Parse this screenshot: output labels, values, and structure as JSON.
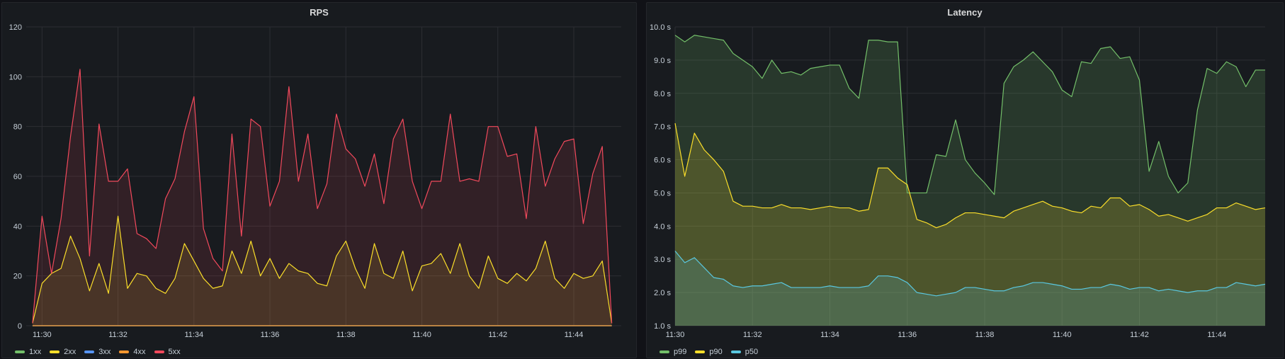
{
  "chart_data": [
    {
      "type": "area",
      "title": "RPS",
      "xlabel": "",
      "ylabel": "",
      "x_ticks": [
        "11:30",
        "11:32",
        "11:34",
        "11:36",
        "11:38",
        "11:40",
        "11:42",
        "11:44"
      ],
      "y_ticks": [
        "0",
        "20",
        "40",
        "60",
        "80",
        "100",
        "120"
      ],
      "xlim": [
        "11:29:35",
        "11:45:15"
      ],
      "ylim": [
        0,
        120
      ],
      "grid": true,
      "legend_placement": "bottom-left",
      "x": [
        "11:29:45",
        "11:30:00",
        "11:30:15",
        "11:30:30",
        "11:30:45",
        "11:31:00",
        "11:31:15",
        "11:31:30",
        "11:31:45",
        "11:32:00",
        "11:32:15",
        "11:32:30",
        "11:32:45",
        "11:33:00",
        "11:33:15",
        "11:33:30",
        "11:33:45",
        "11:34:00",
        "11:34:15",
        "11:34:30",
        "11:34:45",
        "11:35:00",
        "11:35:15",
        "11:35:30",
        "11:35:45",
        "11:36:00",
        "11:36:15",
        "11:36:30",
        "11:36:45",
        "11:37:00",
        "11:37:15",
        "11:37:30",
        "11:37:45",
        "11:38:00",
        "11:38:15",
        "11:38:30",
        "11:38:45",
        "11:39:00",
        "11:39:15",
        "11:39:30",
        "11:39:45",
        "11:40:00",
        "11:40:15",
        "11:40:30",
        "11:40:45",
        "11:41:00",
        "11:41:15",
        "11:41:30",
        "11:41:45",
        "11:42:00",
        "11:42:15",
        "11:42:30",
        "11:42:45",
        "11:43:00",
        "11:43:15",
        "11:43:30",
        "11:43:45",
        "11:44:00",
        "11:44:15",
        "11:44:30",
        "11:44:45",
        "11:45:00"
      ],
      "series": [
        {
          "name": "1xx",
          "color": "#73bf69",
          "values": [
            0,
            0,
            0,
            0,
            0,
            0,
            0,
            0,
            0,
            0,
            0,
            0,
            0,
            0,
            0,
            0,
            0,
            0,
            0,
            0,
            0,
            0,
            0,
            0,
            0,
            0,
            0,
            0,
            0,
            0,
            0,
            0,
            0,
            0,
            0,
            0,
            0,
            0,
            0,
            0,
            0,
            0,
            0,
            0,
            0,
            0,
            0,
            0,
            0,
            0,
            0,
            0,
            0,
            0,
            0,
            0,
            0,
            0,
            0,
            0,
            0,
            0
          ]
        },
        {
          "name": "2xx",
          "color": "#fade2a",
          "values": [
            1,
            17,
            21,
            23,
            36,
            27,
            14,
            25,
            13,
            44,
            15,
            21,
            20,
            15,
            13,
            19,
            33,
            26,
            19,
            15,
            16,
            30,
            21,
            34,
            20,
            27,
            19,
            25,
            22,
            21,
            17,
            16,
            28,
            34,
            23,
            15,
            33,
            21,
            19,
            30,
            14,
            24,
            25,
            29,
            21,
            33,
            20,
            15,
            28,
            19,
            17,
            21,
            18,
            23,
            34,
            19,
            15,
            21,
            19,
            20,
            26,
            1
          ]
        },
        {
          "name": "3xx",
          "color": "#5794f2",
          "values": [
            0,
            0,
            0,
            0,
            0,
            0,
            0,
            0,
            0,
            0,
            0,
            0,
            0,
            0,
            0,
            0,
            0,
            0,
            0,
            0,
            0,
            0,
            0,
            0,
            0,
            0,
            0,
            0,
            0,
            0,
            0,
            0,
            0,
            0,
            0,
            0,
            0,
            0,
            0,
            0,
            0,
            0,
            0,
            0,
            0,
            0,
            0,
            0,
            0,
            0,
            0,
            0,
            0,
            0,
            0,
            0,
            0,
            0,
            0,
            0,
            0,
            0
          ]
        },
        {
          "name": "4xx",
          "color": "#ff9830",
          "values": [
            0,
            0,
            0,
            0,
            0,
            0,
            0,
            0,
            0,
            0,
            0,
            0,
            0,
            0,
            0,
            0,
            0,
            0,
            0,
            0,
            0,
            0,
            0,
            0,
            0,
            0,
            0,
            0,
            0,
            0,
            0,
            0,
            0,
            0,
            0,
            0,
            0,
            0,
            0,
            0,
            0,
            0,
            0,
            0,
            0,
            0,
            0,
            0,
            0,
            0,
            0,
            0,
            0,
            0,
            0,
            0,
            0,
            0,
            0,
            0,
            0,
            0
          ]
        },
        {
          "name": "5xx",
          "color": "#f2495c",
          "values": [
            1,
            44,
            21,
            43,
            76,
            103,
            28,
            81,
            58,
            58,
            63,
            37,
            35,
            31,
            51,
            59,
            78,
            92,
            39,
            27,
            22,
            77,
            36,
            83,
            80,
            48,
            58,
            96,
            58,
            77,
            47,
            57,
            85,
            71,
            67,
            56,
            69,
            49,
            75,
            83,
            58,
            47,
            58,
            58,
            85,
            58,
            59,
            58,
            80,
            80,
            68,
            69,
            43,
            80,
            56,
            67,
            74,
            75,
            41,
            61,
            72,
            1
          ]
        }
      ]
    },
    {
      "type": "area",
      "title": "Latency",
      "xlabel": "",
      "ylabel": "",
      "x_ticks": [
        "11:30",
        "11:32",
        "11:34",
        "11:36",
        "11:38",
        "11:40",
        "11:42",
        "11:44"
      ],
      "y_ticks": [
        "1.0 s",
        "2.0 s",
        "3.0 s",
        "4.0 s",
        "5.0 s",
        "6.0 s",
        "7.0 s",
        "8.0 s",
        "9.0 s",
        "10.0 s"
      ],
      "xlim": [
        "11:30:00",
        "11:45:15"
      ],
      "ylim": [
        1,
        10
      ],
      "grid": true,
      "legend_placement": "bottom-left",
      "x": [
        "11:30:00",
        "11:30:15",
        "11:30:30",
        "11:30:45",
        "11:31:00",
        "11:31:15",
        "11:31:30",
        "11:31:45",
        "11:32:00",
        "11:32:15",
        "11:32:30",
        "11:32:45",
        "11:33:00",
        "11:33:15",
        "11:33:30",
        "11:33:45",
        "11:34:00",
        "11:34:15",
        "11:34:30",
        "11:34:45",
        "11:35:00",
        "11:35:15",
        "11:35:30",
        "11:35:45",
        "11:36:00",
        "11:36:15",
        "11:36:30",
        "11:36:45",
        "11:37:00",
        "11:37:15",
        "11:37:30",
        "11:37:45",
        "11:38:00",
        "11:38:15",
        "11:38:30",
        "11:38:45",
        "11:39:00",
        "11:39:15",
        "11:39:30",
        "11:39:45",
        "11:40:00",
        "11:40:15",
        "11:40:30",
        "11:40:45",
        "11:41:00",
        "11:41:15",
        "11:41:30",
        "11:41:45",
        "11:42:00",
        "11:42:15",
        "11:42:30",
        "11:42:45",
        "11:43:00",
        "11:43:15",
        "11:43:30",
        "11:43:45",
        "11:44:00",
        "11:44:15",
        "11:44:30",
        "11:44:45",
        "11:45:00",
        "11:45:15"
      ],
      "series": [
        {
          "name": "p99",
          "color": "#73bf69",
          "values": [
            9.75,
            9.55,
            9.75,
            9.7,
            9.65,
            9.6,
            9.2,
            9.0,
            8.8,
            8.45,
            9.0,
            8.6,
            8.65,
            8.55,
            8.75,
            8.8,
            8.85,
            8.85,
            8.15,
            7.85,
            9.6,
            9.6,
            9.55,
            9.55,
            5.0,
            5.0,
            5.0,
            6.15,
            6.1,
            7.2,
            6.0,
            5.6,
            5.3,
            4.95,
            8.3,
            8.8,
            9.0,
            9.25,
            8.95,
            8.65,
            8.1,
            7.9,
            8.95,
            8.9,
            9.35,
            9.4,
            9.05,
            9.1,
            8.4,
            5.65,
            6.55,
            5.5,
            5.0,
            5.3,
            7.5,
            8.75,
            8.6,
            8.95,
            8.8,
            8.2,
            8.7,
            8.7
          ]
        },
        {
          "name": "p90",
          "color": "#fade2a",
          "values": [
            7.1,
            5.5,
            6.8,
            6.3,
            6.0,
            5.65,
            4.75,
            4.6,
            4.6,
            4.55,
            4.55,
            4.65,
            4.55,
            4.55,
            4.5,
            4.55,
            4.6,
            4.55,
            4.55,
            4.45,
            4.5,
            5.75,
            5.75,
            5.45,
            5.25,
            4.2,
            4.1,
            3.95,
            4.05,
            4.25,
            4.4,
            4.4,
            4.35,
            4.3,
            4.25,
            4.45,
            4.55,
            4.65,
            4.75,
            4.6,
            4.55,
            4.45,
            4.4,
            4.6,
            4.55,
            4.85,
            4.85,
            4.6,
            4.65,
            4.5,
            4.3,
            4.35,
            4.25,
            4.15,
            4.25,
            4.35,
            4.55,
            4.55,
            4.7,
            4.6,
            4.5,
            4.55
          ]
        },
        {
          "name": "p50",
          "color": "#5ac8e0",
          "values": [
            3.25,
            2.9,
            3.05,
            2.75,
            2.45,
            2.4,
            2.2,
            2.15,
            2.2,
            2.2,
            2.25,
            2.3,
            2.15,
            2.15,
            2.15,
            2.15,
            2.2,
            2.15,
            2.15,
            2.15,
            2.2,
            2.5,
            2.5,
            2.45,
            2.3,
            2.0,
            1.95,
            1.9,
            1.95,
            2.0,
            2.15,
            2.15,
            2.1,
            2.05,
            2.05,
            2.15,
            2.2,
            2.3,
            2.3,
            2.25,
            2.2,
            2.1,
            2.1,
            2.15,
            2.15,
            2.25,
            2.2,
            2.1,
            2.15,
            2.15,
            2.05,
            2.1,
            2.05,
            2.0,
            2.05,
            2.05,
            2.15,
            2.15,
            2.3,
            2.25,
            2.2,
            2.25
          ]
        }
      ]
    }
  ]
}
